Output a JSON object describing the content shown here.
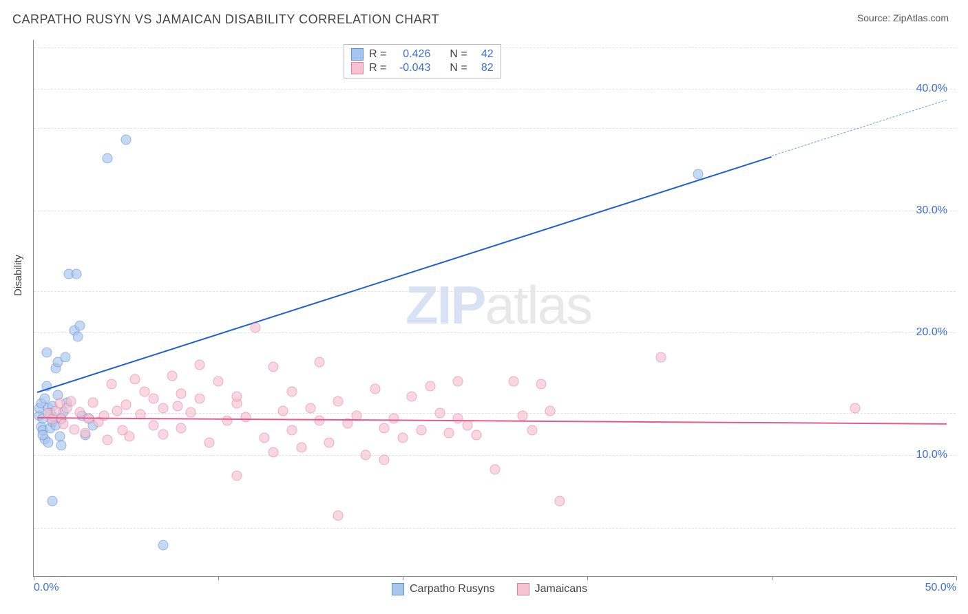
{
  "title": "CARPATHO RUSYN VS JAMAICAN DISABILITY CORRELATION CHART",
  "source_label": "Source: ZipAtlas.com",
  "ylabel": "Disability",
  "watermark": {
    "part1": "ZIP",
    "part2": "atlas"
  },
  "chart": {
    "type": "scatter",
    "xlim": [
      0,
      50
    ],
    "ylim": [
      0,
      44
    ],
    "xtick_labels": [
      "0.0%",
      "50.0%"
    ],
    "xtick_positions": [
      0,
      50
    ],
    "xtick_marks": [
      0,
      10,
      20,
      30,
      40,
      50
    ],
    "ytick_labels": [
      "10.0%",
      "20.0%",
      "30.0%",
      "40.0%"
    ],
    "ytick_positions": [
      10,
      20,
      30,
      40
    ],
    "hgrid_positions": [
      4,
      10,
      13.4,
      20,
      23.4,
      30,
      36.8,
      40,
      43.4
    ],
    "background_color": "#ffffff",
    "grid_color": "#e0e0e0",
    "axis_color": "#888888",
    "tick_label_color": "#3b6fd6",
    "marker_size": 15,
    "marker_opacity": 0.65
  },
  "series": [
    {
      "name": "Carpatho Rusyns",
      "fill_color": "#a8c5ed",
      "stroke_color": "#5c8fd6",
      "r_value": "0.426",
      "n_value": "42",
      "trend": {
        "x1": 0.2,
        "y1": 15.2,
        "x2": 40,
        "y2": 34.5,
        "color": "#1f5fd6",
        "width": 2
      },
      "trend_dashed": {
        "x1": 40,
        "y1": 34.5,
        "x2": 49.5,
        "y2": 39.1,
        "color": "#6a9be8",
        "width": 1.5
      },
      "points": [
        [
          0.3,
          13.2
        ],
        [
          0.3,
          13.8
        ],
        [
          0.4,
          12.3
        ],
        [
          0.4,
          14.2
        ],
        [
          0.5,
          13.0
        ],
        [
          0.5,
          12.0
        ],
        [
          0.6,
          11.3
        ],
        [
          0.6,
          14.6
        ],
        [
          0.7,
          15.6
        ],
        [
          0.7,
          18.4
        ],
        [
          0.8,
          13.8
        ],
        [
          0.8,
          11.0
        ],
        [
          0.9,
          12.2
        ],
        [
          0.9,
          13.4
        ],
        [
          1.0,
          12.7
        ],
        [
          1.0,
          14.0
        ],
        [
          1.1,
          13.1
        ],
        [
          1.2,
          12.4
        ],
        [
          1.2,
          17.1
        ],
        [
          1.3,
          17.6
        ],
        [
          1.3,
          14.9
        ],
        [
          1.4,
          11.5
        ],
        [
          1.5,
          12.9
        ],
        [
          1.5,
          10.8
        ],
        [
          1.6,
          13.5
        ],
        [
          1.7,
          18.0
        ],
        [
          1.8,
          14.3
        ],
        [
          1.9,
          24.8
        ],
        [
          2.2,
          20.2
        ],
        [
          2.3,
          24.8
        ],
        [
          2.4,
          19.7
        ],
        [
          2.5,
          20.6
        ],
        [
          2.6,
          13.2
        ],
        [
          2.8,
          11.6
        ],
        [
          3.0,
          13.0
        ],
        [
          3.2,
          12.4
        ],
        [
          1.0,
          6.2
        ],
        [
          5.0,
          35.8
        ],
        [
          4.0,
          34.3
        ],
        [
          7.0,
          2.6
        ],
        [
          36.0,
          33.0
        ],
        [
          0.5,
          11.6
        ]
      ]
    },
    {
      "name": "Jamaicans",
      "fill_color": "#f5c3d2",
      "stroke_color": "#e87a9f",
      "r_value": "-0.043",
      "n_value": "82",
      "trend": {
        "x1": 0.2,
        "y1": 13.1,
        "x2": 49.5,
        "y2": 12.6,
        "color": "#e85a8a",
        "width": 2
      },
      "points": [
        [
          0.8,
          13.4
        ],
        [
          1.0,
          12.9
        ],
        [
          1.2,
          13.6
        ],
        [
          1.4,
          14.2
        ],
        [
          1.5,
          13.0
        ],
        [
          1.6,
          12.5
        ],
        [
          1.8,
          13.8
        ],
        [
          2.0,
          14.4
        ],
        [
          2.2,
          12.1
        ],
        [
          2.5,
          13.5
        ],
        [
          2.8,
          11.8
        ],
        [
          3.0,
          13.0
        ],
        [
          3.2,
          14.3
        ],
        [
          3.5,
          12.7
        ],
        [
          3.8,
          13.2
        ],
        [
          4.0,
          11.2
        ],
        [
          4.2,
          15.8
        ],
        [
          4.5,
          13.6
        ],
        [
          4.8,
          12.0
        ],
        [
          5.0,
          14.1
        ],
        [
          5.2,
          11.5
        ],
        [
          5.5,
          16.2
        ],
        [
          5.8,
          13.3
        ],
        [
          6.0,
          15.2
        ],
        [
          6.5,
          14.6
        ],
        [
          6.5,
          12.4
        ],
        [
          7.0,
          13.8
        ],
        [
          7.0,
          11.7
        ],
        [
          7.5,
          16.5
        ],
        [
          7.8,
          14.0
        ],
        [
          8.0,
          12.2
        ],
        [
          8.0,
          15.0
        ],
        [
          8.5,
          13.5
        ],
        [
          9.0,
          14.6
        ],
        [
          9.5,
          11.0
        ],
        [
          10.0,
          16.0
        ],
        [
          10.5,
          12.8
        ],
        [
          11.0,
          14.2
        ],
        [
          11.0,
          8.3
        ],
        [
          11.5,
          13.1
        ],
        [
          12.0,
          20.4
        ],
        [
          12.5,
          11.4
        ],
        [
          13.0,
          17.2
        ],
        [
          13.5,
          13.6
        ],
        [
          14.0,
          12.0
        ],
        [
          14.0,
          15.2
        ],
        [
          14.5,
          10.6
        ],
        [
          15.0,
          13.8
        ],
        [
          15.5,
          17.6
        ],
        [
          16.0,
          11.0
        ],
        [
          16.5,
          14.4
        ],
        [
          16.5,
          5.0
        ],
        [
          17.0,
          12.6
        ],
        [
          17.5,
          13.2
        ],
        [
          18.0,
          10.0
        ],
        [
          18.5,
          15.4
        ],
        [
          19.0,
          12.2
        ],
        [
          19.0,
          9.6
        ],
        [
          19.5,
          13.0
        ],
        [
          20.0,
          11.4
        ],
        [
          20.5,
          14.8
        ],
        [
          21.0,
          12.0
        ],
        [
          21.5,
          15.6
        ],
        [
          22.0,
          13.4
        ],
        [
          22.5,
          11.8
        ],
        [
          23.0,
          16.0
        ],
        [
          23.0,
          13.0
        ],
        [
          23.5,
          12.4
        ],
        [
          24.0,
          11.6
        ],
        [
          25.0,
          8.8
        ],
        [
          26.0,
          16.0
        ],
        [
          26.5,
          13.2
        ],
        [
          27.0,
          12.0
        ],
        [
          27.5,
          15.8
        ],
        [
          28.0,
          13.6
        ],
        [
          28.5,
          6.2
        ],
        [
          34.0,
          18.0
        ],
        [
          44.5,
          13.8
        ],
        [
          9.0,
          17.4
        ],
        [
          11.0,
          14.8
        ],
        [
          13.0,
          10.2
        ],
        [
          15.5,
          12.8
        ]
      ]
    }
  ],
  "legend_stats": {
    "r_label": "R =",
    "n_label": "N ="
  },
  "legend_bottom": {
    "items": [
      "Carpatho Rusyns",
      "Jamaicans"
    ]
  }
}
